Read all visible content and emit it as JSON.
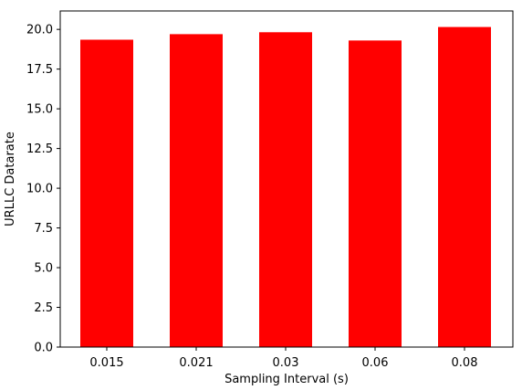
{
  "chart_data": {
    "type": "bar",
    "categories": [
      "0.015",
      "0.021",
      "0.03",
      "0.06",
      "0.08"
    ],
    "values": [
      19.35,
      19.7,
      19.82,
      19.3,
      20.15
    ],
    "title": "",
    "xlabel": "Sampling Interval (s)",
    "ylabel": "URLLC Datarate",
    "ylim": [
      0,
      21.16
    ],
    "yticks": [
      "0.0",
      "2.5",
      "5.0",
      "7.5",
      "10.0",
      "12.5",
      "15.0",
      "17.5",
      "20.0"
    ],
    "bar_color": "#ff0000",
    "grid": false,
    "legend": "none"
  }
}
